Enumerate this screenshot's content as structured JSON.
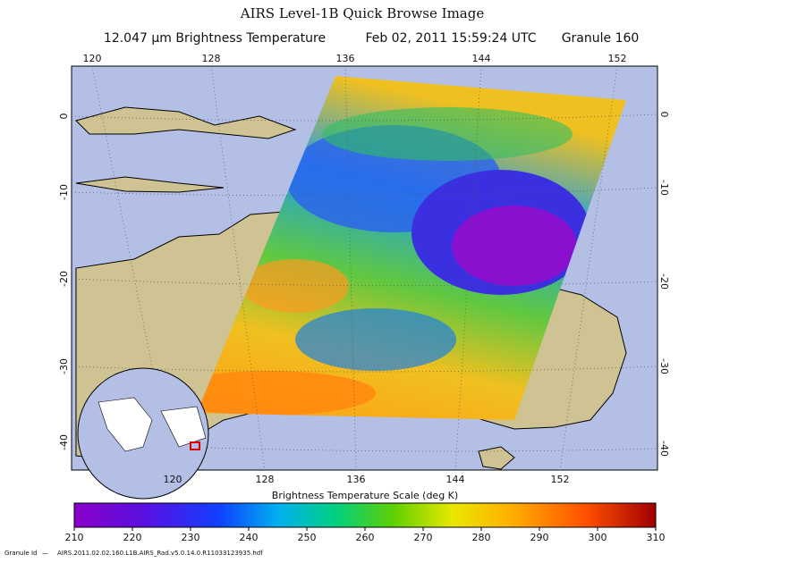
{
  "header": {
    "title": "AIRS Level-1B Quick Browse Image",
    "quantity": "12.047 μm Brightness Temperature",
    "time": "Feb 02, 2011 15:59:24 UTC",
    "granule": "Granule 160"
  },
  "map": {
    "lon_ticks": [
      120,
      128,
      136,
      144,
      152
    ],
    "lat_ticks": [
      0,
      -10,
      -20,
      -30,
      -40
    ]
  },
  "colorbar": {
    "label": "Brightness Temperature Scale (deg K)",
    "range": [
      210,
      310
    ],
    "ticks": [
      210,
      220,
      230,
      240,
      250,
      260,
      270,
      280,
      290,
      300,
      310
    ]
  },
  "footer": {
    "label": "Granule Id",
    "file": "AIRS.2011.02.02.160.L1B.AIRS_Rad.v5.0.14.0.R11033123935.hdf"
  }
}
